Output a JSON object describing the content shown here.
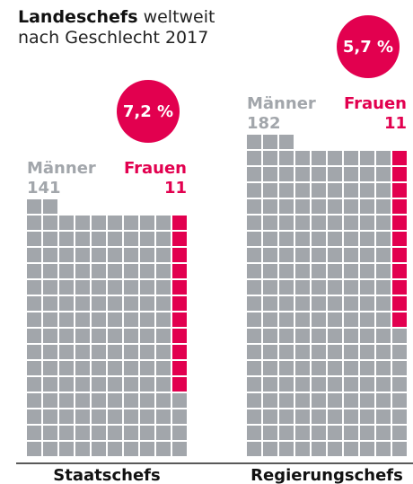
{
  "chart_data": {
    "type": "waffle",
    "title": "Landeschefs",
    "subtitle": "weltweit nach Geschlecht 2017",
    "categories": [
      "Staatschefs",
      "Regierungschefs"
    ],
    "series": [
      {
        "name": "Männer",
        "color": "#a2a6ab",
        "values": [
          141,
          182
        ]
      },
      {
        "name": "Frauen",
        "color": "#e2004f",
        "values": [
          11,
          11
        ]
      }
    ],
    "shares": [
      7.2,
      5.7
    ],
    "share_labels": [
      "7,2 %",
      "5,7 %"
    ]
  }
}
